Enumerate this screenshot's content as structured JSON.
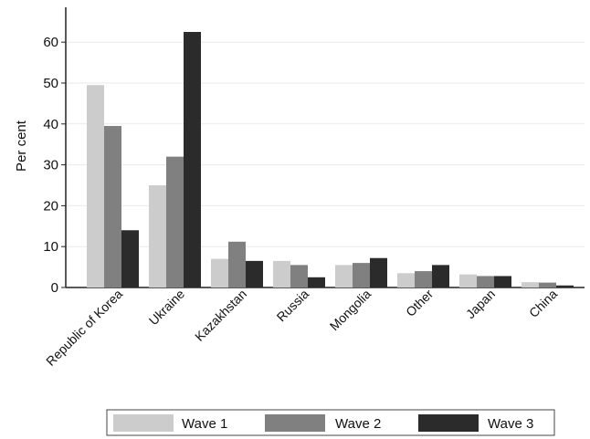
{
  "chart_data": {
    "type": "bar",
    "title": "",
    "xlabel": "",
    "ylabel": "Per cent",
    "ylim": [
      0,
      70
    ],
    "yticks": [
      0,
      10,
      20,
      30,
      40,
      50,
      60
    ],
    "grid": true,
    "legend_position": "bottom",
    "categories": [
      "Republic of Korea",
      "Ukraine",
      "Kazakhstan",
      "Russia",
      "Mongolia",
      "Other",
      "Japan",
      "China"
    ],
    "series": [
      {
        "name": "Wave 1",
        "color": "#cccccc",
        "values": [
          49.5,
          25.0,
          7.0,
          6.5,
          5.5,
          3.5,
          3.2,
          1.3
        ]
      },
      {
        "name": "Wave 2",
        "color": "#808080",
        "values": [
          39.5,
          32.0,
          11.2,
          5.5,
          6.0,
          4.0,
          2.8,
          1.2
        ]
      },
      {
        "name": "Wave 3",
        "color": "#2b2b2b",
        "values": [
          14.0,
          62.5,
          6.5,
          2.5,
          7.2,
          5.5,
          2.8,
          0.5
        ]
      }
    ]
  }
}
